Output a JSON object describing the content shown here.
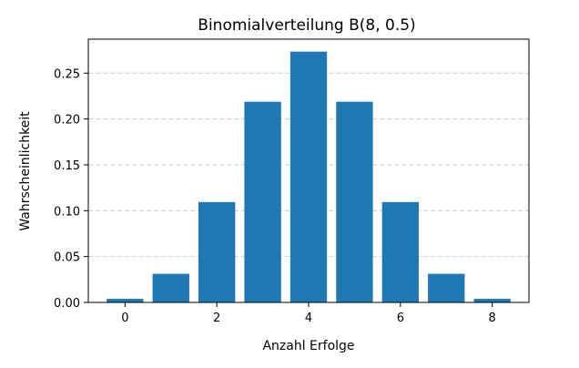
{
  "chart_data": {
    "type": "bar",
    "title": "Binomialverteilung B(8, 0.5)",
    "xlabel": "Anzahl Erfolge",
    "ylabel": "Wahrscheinlichkeit",
    "categories": [
      0,
      1,
      2,
      3,
      4,
      5,
      6,
      7,
      8
    ],
    "values": [
      0.0039,
      0.0312,
      0.1094,
      0.2188,
      0.2734,
      0.2188,
      0.1094,
      0.0312,
      0.0039
    ],
    "xlim": [
      -0.8,
      8.8
    ],
    "ylim": [
      0,
      0.287
    ],
    "xticks": [
      0,
      2,
      4,
      6,
      8
    ],
    "yticks": [
      0,
      0.05,
      0.1,
      0.15,
      0.2,
      0.25
    ],
    "xtick_labels": [
      "0",
      "2",
      "4",
      "6",
      "8"
    ],
    "ytick_labels": [
      "0.00",
      "0.05",
      "0.10",
      "0.15",
      "0.20",
      "0.25"
    ],
    "grid": "y-dashed",
    "bar_color": "#1f77b4"
  }
}
